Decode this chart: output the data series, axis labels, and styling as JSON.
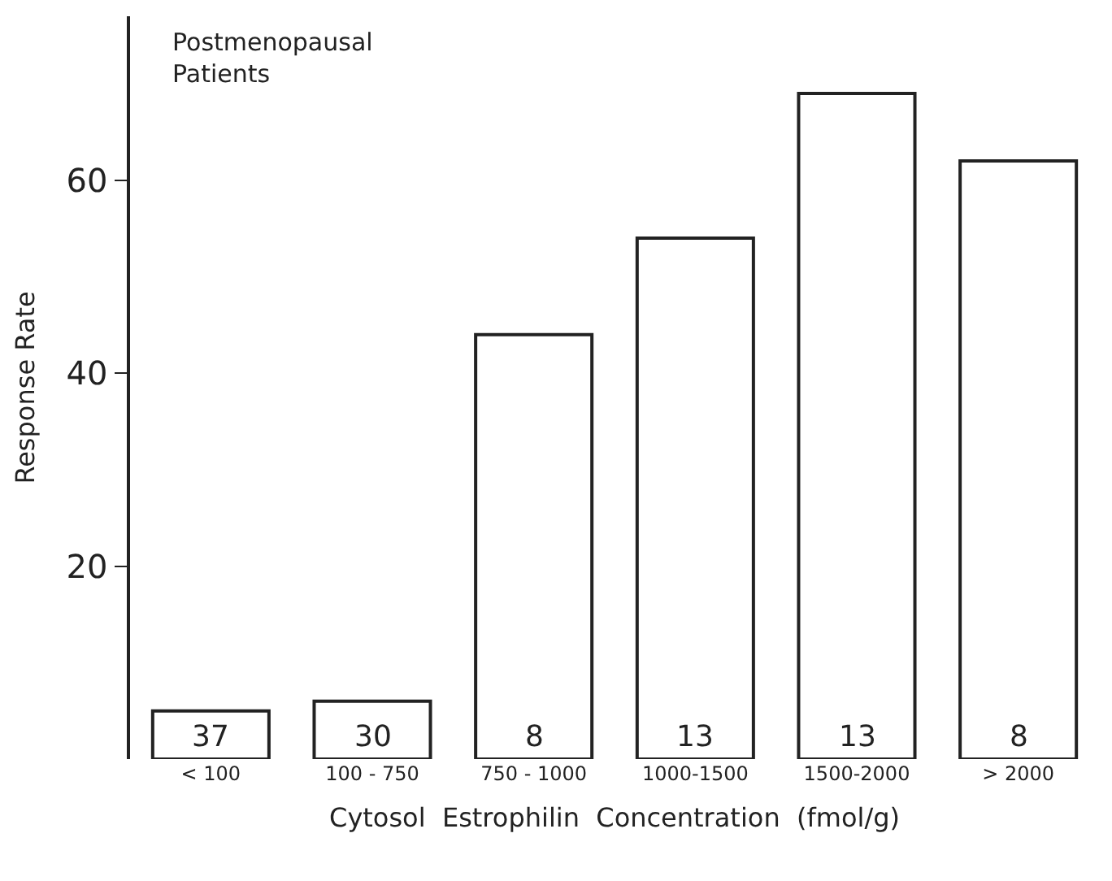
{
  "chart_data": {
    "type": "bar",
    "categories": [
      "< 100",
      "100 - 750",
      "750 - 1000",
      "1000-1500",
      "1500-2000",
      "> 2000"
    ],
    "values": [
      5,
      6,
      44,
      54,
      69,
      62
    ],
    "color": "#ffffff",
    "xlabel": "Cytosol  Estrophilin  Concentration  (fmol/g)",
    "ylabel": "Response Rate",
    "annotations": [
      "Postmenopausal\nPatients",
      {
        "text": "37",
        "x": "< 100",
        "y": 0
      },
      {
        "text": "30",
        "x": "100 - 750",
        "y": 0
      },
      {
        "text": "8",
        "x": "750 - 1000",
        "y": 0
      },
      {
        "text": "13",
        "x": "1000-1500",
        "y": 0
      },
      {
        "text": "13",
        "x": "1500-2000",
        "y": 0
      },
      {
        "text": "8",
        "x": "> 2000",
        "y": 0
      }
    ],
    "ylim": [
      0,
      77
    ],
    "yticks": [
      20,
      40,
      60
    ]
  }
}
